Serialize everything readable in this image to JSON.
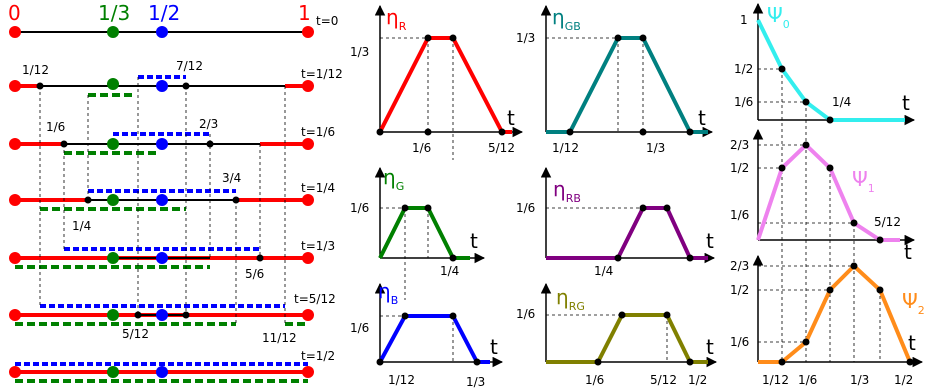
{
  "colors": {
    "red": "#ff0000",
    "green": "#008000",
    "blue": "#0000ff",
    "teal": "#008080",
    "purple": "#800080",
    "olive": "#808000",
    "cyan": "#33eeee",
    "pink": "#ee82ee",
    "orange": "#ff8c1a",
    "black": "#000000"
  },
  "timeline": {
    "top_labels": {
      "zero": "0",
      "third": "1/3",
      "half": "1/2",
      "one": "1"
    },
    "rows": [
      {
        "t_label": "t=0",
        "mark": "",
        "left_label": "",
        "right_label": ""
      },
      {
        "t_label": "t=1/12",
        "left_label": "1/12",
        "right_label": "7/12"
      },
      {
        "t_label": "t=1/6",
        "left_label": "1/6",
        "right_label": "2/3"
      },
      {
        "t_label": "t=1/4",
        "left_label": "1/4",
        "right_label": "3/4"
      },
      {
        "t_label": "t=1/3",
        "left_label": "",
        "right_label": "5/6"
      },
      {
        "t_label": "t=5/12",
        "left_label": "5/12",
        "right_label": "11/12"
      },
      {
        "t_label": "t=1/2",
        "left_label": "",
        "right_label": ""
      }
    ]
  },
  "eta_plots": {
    "R": {
      "symbol": "η",
      "sub": "R",
      "xlabel": "t",
      "yticks": [
        "1/3"
      ],
      "xticks": [
        "1/6",
        "5/12"
      ]
    },
    "GB": {
      "symbol": "η",
      "sub": "GB",
      "xlabel": "t",
      "yticks": [
        "1/3"
      ],
      "xticks": [
        "1/12",
        "1/3"
      ]
    },
    "G": {
      "symbol": "η",
      "sub": "G",
      "xlabel": "t",
      "yticks": [
        "1/6"
      ],
      "xticks": [
        "1/4"
      ]
    },
    "RB": {
      "symbol": "η",
      "sub": "RB",
      "xlabel": "t",
      "yticks": [
        "1/6"
      ],
      "xticks": [
        "1/4"
      ]
    },
    "B": {
      "symbol": "η",
      "sub": "B",
      "xlabel": "t",
      "yticks": [
        "1/6"
      ],
      "xticks": [
        "1/12",
        "1/3"
      ]
    },
    "RG": {
      "symbol": "η",
      "sub": "RG",
      "xlabel": "t",
      "yticks": [
        "1/6"
      ],
      "xticks": [
        "1/6",
        "5/12",
        "1/2"
      ]
    }
  },
  "psi_plots": {
    "psi0": {
      "symbol": "Ψ",
      "sub": "0",
      "xlabel": "t",
      "yticks": [
        "1",
        "1/2",
        "1/6"
      ],
      "xticks": [
        "1/4"
      ]
    },
    "psi1": {
      "symbol": "Ψ",
      "sub": "1",
      "xlabel": "t",
      "yticks": [
        "2/3",
        "1/2",
        "1/6"
      ],
      "xticks": [
        "5/12"
      ]
    },
    "psi2": {
      "symbol": "Ψ",
      "sub": "2",
      "xlabel": "t",
      "yticks": [
        "2/3",
        "1/2",
        "1/6"
      ],
      "xticks": [
        "1/12",
        "1/6",
        "1/3",
        "1/2"
      ]
    }
  }
}
